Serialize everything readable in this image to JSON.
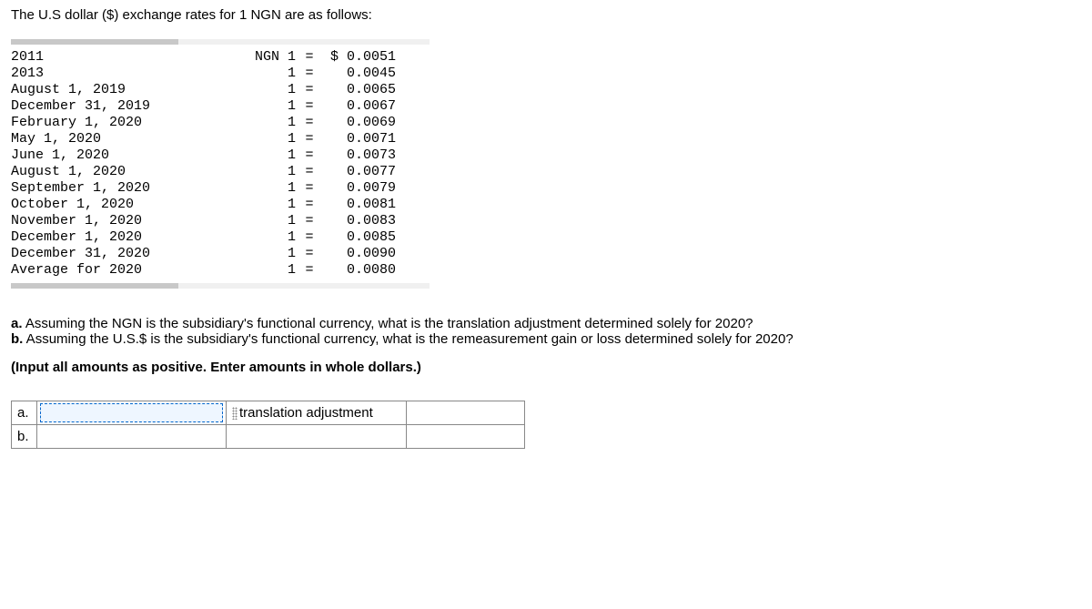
{
  "intro_text": "The U.S dollar ($) exchange rates for 1 NGN are as follows:",
  "rates": {
    "unit_label_first": "NGN 1",
    "unit_label_rest": "1",
    "equals": "=",
    "currency_prefix": "$ ",
    "rows": [
      {
        "date": "2011",
        "value": "0.0051",
        "first": true
      },
      {
        "date": "2013",
        "value": "0.0045",
        "first": false
      },
      {
        "date": "August 1, 2019",
        "value": "0.0065",
        "first": false
      },
      {
        "date": "December 31, 2019",
        "value": "0.0067",
        "first": false
      },
      {
        "date": "February 1, 2020",
        "value": "0.0069",
        "first": false
      },
      {
        "date": "May 1, 2020",
        "value": "0.0071",
        "first": false
      },
      {
        "date": "June 1, 2020",
        "value": "0.0073",
        "first": false
      },
      {
        "date": "August 1, 2020",
        "value": "0.0077",
        "first": false
      },
      {
        "date": "September 1, 2020",
        "value": "0.0079",
        "first": false
      },
      {
        "date": "October 1, 2020",
        "value": "0.0081",
        "first": false
      },
      {
        "date": "November 1, 2020",
        "value": "0.0083",
        "first": false
      },
      {
        "date": "December 1, 2020",
        "value": "0.0085",
        "first": false
      },
      {
        "date": "December 31, 2020",
        "value": "0.0090",
        "first": false
      },
      {
        "date": "Average for 2020",
        "value": "0.0080",
        "first": false
      }
    ]
  },
  "questions": {
    "a_label": "a.",
    "a_text": " Assuming the NGN is the subsidiary's functional currency, what is the translation adjustment determined solely for 2020?",
    "b_label": "b.",
    "b_text": " Assuming the U.S.$ is the subsidiary's functional currency, what is the remeasurement gain or loss determined solely for 2020?"
  },
  "instruction": "(Input all amounts as positive. Enter amounts in whole dollars.)",
  "answers": {
    "row_a_label": "a.",
    "row_b_label": "b.",
    "col2_a_text": "translation adjustment"
  }
}
